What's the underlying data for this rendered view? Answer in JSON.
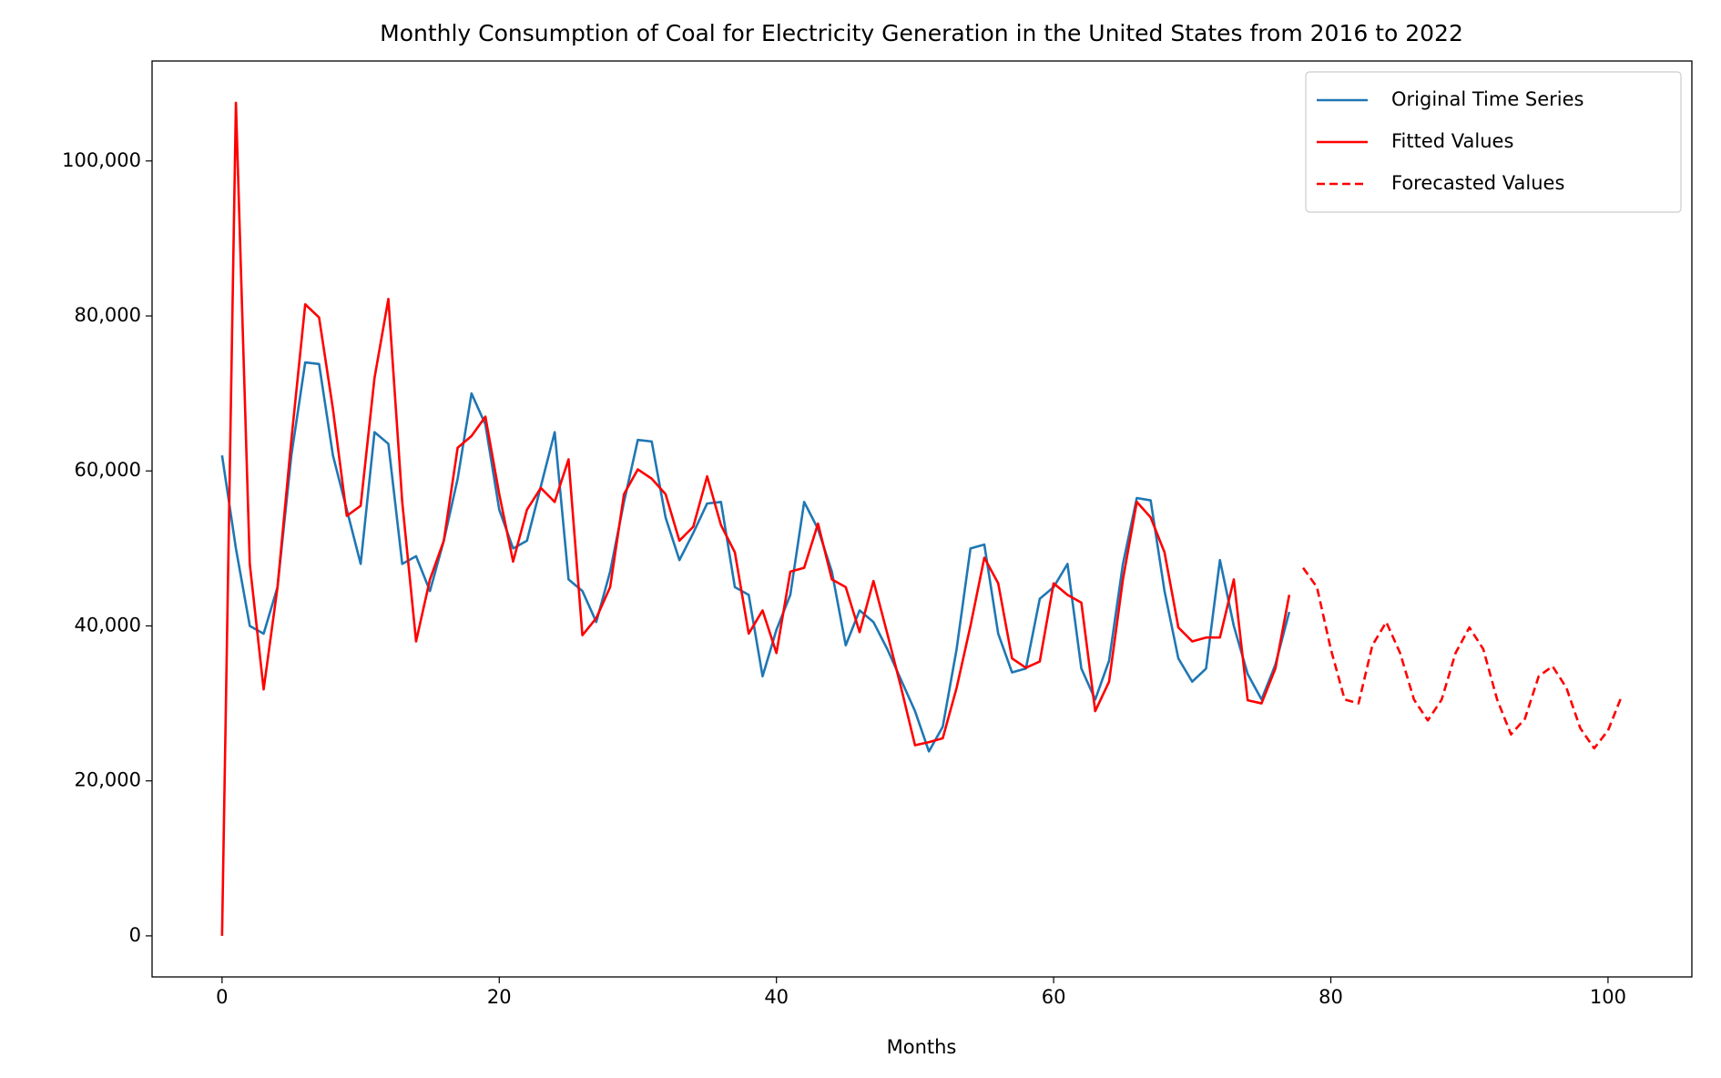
{
  "chart_data": {
    "type": "line",
    "title": "Monthly Consumption of Coal for Electricity Generation in the United States from 2016 to 2022",
    "xlabel": "Months",
    "xlim": [
      -5.05,
      106.05
    ],
    "xticks": [
      0,
      20,
      40,
      60,
      80,
      100
    ],
    "ylim": [
      -5300,
      112900
    ],
    "yticks": [
      0,
      {
        "value": 20000,
        "label": "20,000"
      },
      {
        "value": 40000,
        "label": "40,000"
      },
      {
        "value": 60000,
        "label": "60,000"
      },
      {
        "value": 80000,
        "label": "80,000"
      },
      {
        "value": 100000,
        "label": "100,000"
      }
    ],
    "legend": "upper right",
    "series": [
      {
        "name": "Original Time Series",
        "color": "#1f77b4",
        "linestyle": "solid",
        "x": [
          0,
          1,
          2,
          3,
          4,
          5,
          6,
          7,
          8,
          9,
          10,
          11,
          12,
          13,
          14,
          15,
          16,
          17,
          18,
          19,
          20,
          21,
          22,
          23,
          24,
          25,
          26,
          27,
          28,
          29,
          30,
          31,
          32,
          33,
          34,
          35,
          36,
          37,
          38,
          39,
          40,
          41,
          42,
          43,
          44,
          45,
          46,
          47,
          48,
          49,
          50,
          51,
          52,
          53,
          54,
          55,
          56,
          57,
          58,
          59,
          60,
          61,
          62,
          63,
          64,
          65,
          66,
          67,
          68,
          69,
          70,
          71,
          72,
          73,
          74,
          75,
          76,
          77
        ],
        "values": [
          62000,
          50000,
          40000,
          39000,
          45000,
          62000,
          74000,
          73800,
          62000,
          55000,
          48000,
          65000,
          63500,
          48000,
          49000,
          44500,
          51000,
          59000,
          70000,
          66000,
          55000,
          50000,
          51000,
          58000,
          65000,
          46000,
          44500,
          40500,
          47000,
          56000,
          64000,
          63800,
          54000,
          48500,
          52000,
          55800,
          56000,
          45000,
          44000,
          33500,
          39500,
          44000,
          56000,
          52500,
          47000,
          37500,
          42000,
          40500,
          37000,
          33000,
          29000,
          23800,
          27000,
          37000,
          50000,
          50500,
          39000,
          34000,
          34500,
          43500,
          45000,
          48000,
          34500,
          30500,
          35500,
          48000,
          56500,
          56200,
          44500,
          35800,
          32800,
          34500,
          48500,
          40000,
          33800,
          30500,
          35000,
          41800
        ]
      },
      {
        "name": "Fitted Values",
        "color": "#ff0000",
        "linestyle": "solid",
        "x": [
          0,
          1,
          2,
          3,
          4,
          5,
          6,
          7,
          8,
          9,
          10,
          11,
          12,
          13,
          14,
          15,
          16,
          17,
          18,
          19,
          20,
          21,
          22,
          23,
          24,
          25,
          26,
          27,
          28,
          29,
          30,
          31,
          32,
          33,
          34,
          35,
          36,
          37,
          38,
          39,
          40,
          41,
          42,
          43,
          44,
          45,
          46,
          47,
          48,
          49,
          50,
          51,
          52,
          53,
          54,
          55,
          56,
          57,
          58,
          59,
          60,
          61,
          62,
          63,
          64,
          65,
          66,
          67,
          68,
          69,
          70,
          71,
          72,
          73,
          74,
          75,
          76,
          77
        ],
        "values": [
          0,
          107500,
          48000,
          31800,
          45000,
          64000,
          81500,
          79800,
          68000,
          54200,
          55500,
          72000,
          82200,
          56000,
          38000,
          46000,
          51000,
          63000,
          64500,
          67000,
          57000,
          48300,
          55000,
          57800,
          56000,
          61500,
          38800,
          41000,
          45000,
          57000,
          60200,
          59000,
          57000,
          51000,
          52800,
          59300,
          53000,
          49500,
          39000,
          42000,
          36500,
          47000,
          47500,
          53200,
          46000,
          45000,
          39200,
          45800,
          39000,
          32000,
          24600,
          25000,
          25500,
          32000,
          40000,
          48800,
          45500,
          35800,
          34600,
          35400,
          45500,
          44000,
          43000,
          29000,
          32800,
          46000,
          56000,
          54000,
          49500,
          39800,
          38000,
          38500,
          38500,
          46000,
          30400,
          30000,
          34500,
          44000
        ]
      },
      {
        "name": "Forecasted Values",
        "color": "#ff0000",
        "linestyle": "dashed",
        "x": [
          78,
          79,
          80,
          81,
          82,
          83,
          84,
          85,
          86,
          87,
          88,
          89,
          90,
          91,
          92,
          93,
          94,
          95,
          96,
          97,
          98,
          99,
          100,
          101
        ],
        "values": [
          47500,
          45000,
          37000,
          30500,
          30000,
          37500,
          40500,
          36500,
          30500,
          27800,
          30500,
          36500,
          39800,
          37000,
          30500,
          26000,
          28000,
          33500,
          34800,
          32000,
          26800,
          24200,
          26500,
          31000
        ]
      }
    ]
  }
}
